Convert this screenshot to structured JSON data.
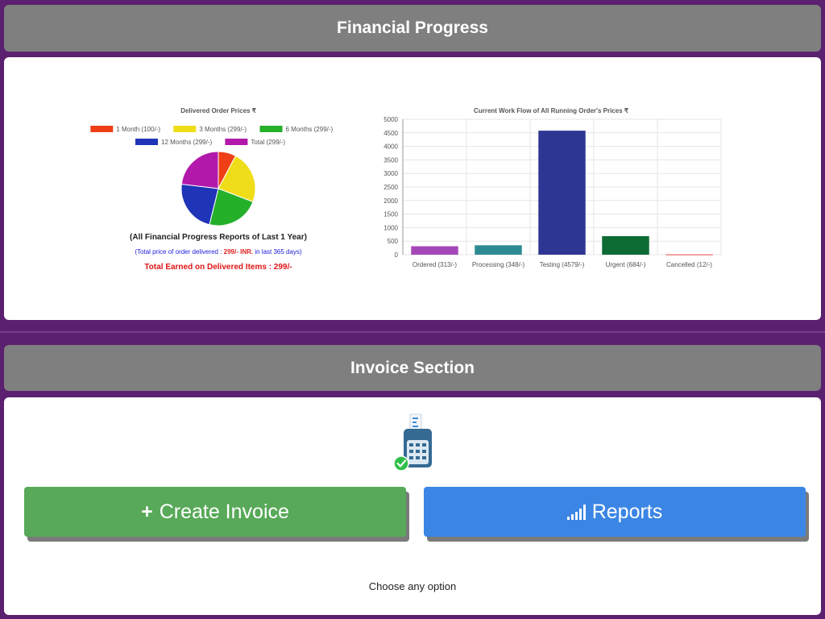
{
  "financial": {
    "header": "Financial Progress",
    "pie": {
      "title": "Delivered Order Prices ₹",
      "reports_heading": "(All Financial Progress Reports of Last 1 Year)",
      "total_line_prefix": "(Total price of order delivered : ",
      "total_line_amount": "299/- INR.",
      "total_line_suffix": " in last 365 days)",
      "earned": "Total Earned on Delivered Items : 299/-"
    },
    "bar": {
      "title": "Current Work Flow of All Running Order's Prices ₹"
    }
  },
  "invoice": {
    "header": "Invoice Section",
    "create_label": "Create Invoice",
    "create_glyph": "+",
    "reports_label": "Reports",
    "choose_text": "Choose any option"
  },
  "chart_data": [
    {
      "type": "pie",
      "title": "Delivered Order Prices ₹",
      "categories": [
        "1 Month (100/-)",
        "3 Months (299/-)",
        "6 Months (299/-)",
        "12 Months (299/-)",
        "Total (299/-)"
      ],
      "values": [
        100,
        299,
        299,
        299,
        299
      ],
      "colors": [
        "#ef3f16",
        "#f0dd19",
        "#25b02a",
        "#1f34b6",
        "#b219ab"
      ],
      "legend": "top"
    },
    {
      "type": "bar",
      "title": "Current Work Flow of All Running Order's Prices ₹",
      "categories": [
        "Ordered (313/-)",
        "Processing (348/-)",
        "Testing (4579/-)",
        "Urgent (684/-)",
        "Cancelled (12/-)"
      ],
      "values": [
        313,
        348,
        4579,
        684,
        12
      ],
      "colors": [
        "#a647b8",
        "#2e8b93",
        "#2e3694",
        "#0e6b34",
        "#e64b4b"
      ],
      "ylim": [
        0,
        5000
      ],
      "yticks": [
        0,
        500,
        1000,
        1500,
        2000,
        2500,
        3000,
        3500,
        4000,
        4500,
        5000
      ],
      "grid": true,
      "xlabel": "",
      "ylabel": ""
    }
  ]
}
